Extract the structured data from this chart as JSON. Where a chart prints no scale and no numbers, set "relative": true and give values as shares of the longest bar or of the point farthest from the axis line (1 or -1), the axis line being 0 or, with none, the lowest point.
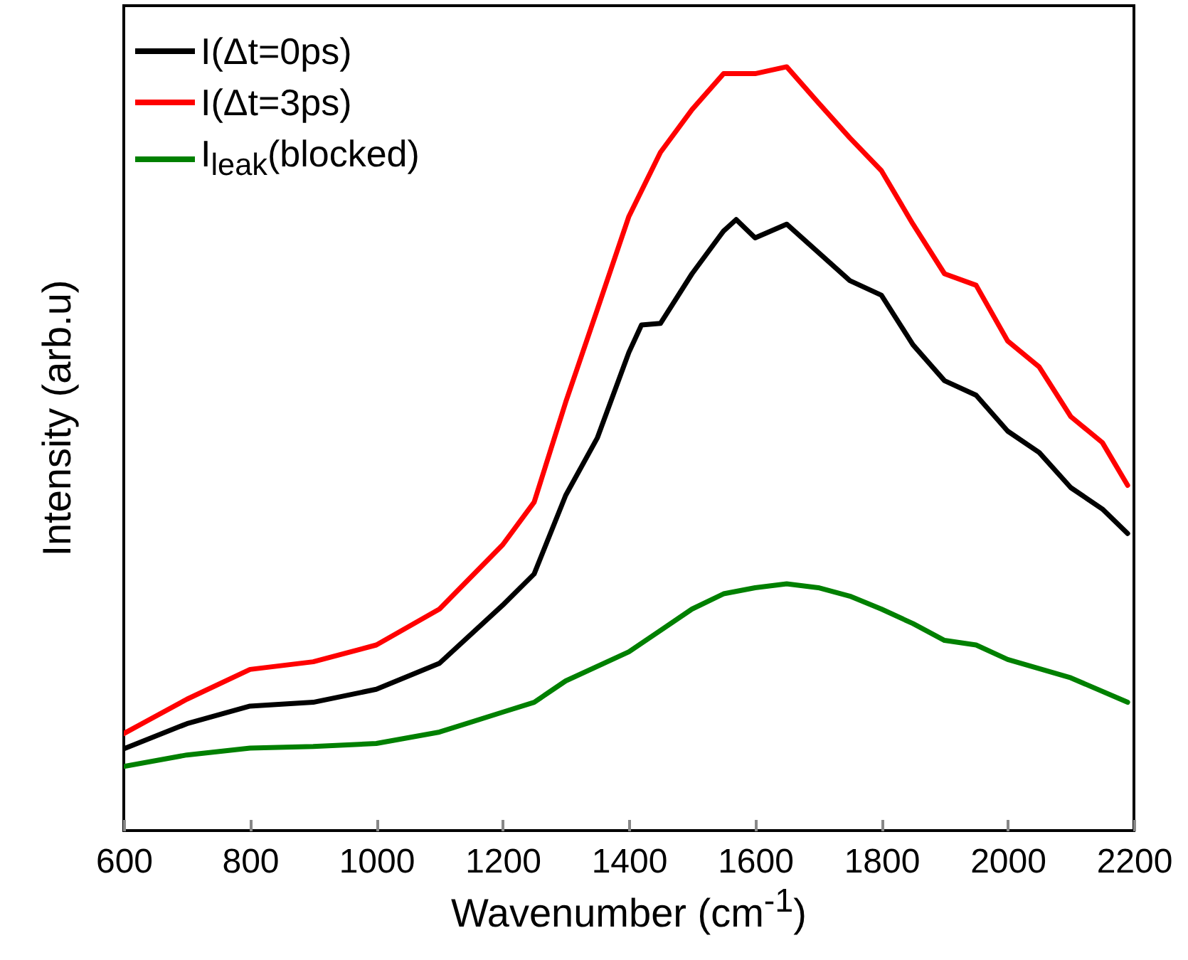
{
  "chart_data": {
    "type": "line",
    "xlabel": "Wavenumber (cm$^{-1}$)",
    "ylabel": "Intensity (arb.u)",
    "relative": true,
    "xlim": [
      600,
      2200
    ],
    "xticks": [
      600,
      800,
      1000,
      1200,
      1400,
      1600,
      1800,
      2000,
      2200
    ],
    "legend": "top left",
    "line_style": "solid",
    "marker": "none",
    "series": [
      {
        "name": "I(Δt=0ps)",
        "color": "#000000",
        "x": [
          600,
          700,
          800,
          900,
          1000,
          1100,
          1200,
          1250,
          1300,
          1350,
          1400,
          1420,
          1450,
          1500,
          1550,
          1570,
          1600,
          1650,
          1700,
          1750,
          1800,
          1850,
          1900,
          1950,
          2000,
          2050,
          2100,
          2150,
          2190
        ],
        "values": [
          0.107,
          0.14,
          0.163,
          0.168,
          0.185,
          0.219,
          0.295,
          0.336,
          0.439,
          0.514,
          0.626,
          0.662,
          0.664,
          0.729,
          0.785,
          0.8,
          0.776,
          0.794,
          0.757,
          0.72,
          0.701,
          0.636,
          0.589,
          0.57,
          0.523,
          0.495,
          0.449,
          0.421,
          0.389
        ]
      },
      {
        "name": "I(Δt=3ps)",
        "color": "#ff0000",
        "x": [
          600,
          700,
          800,
          900,
          1000,
          1100,
          1200,
          1250,
          1300,
          1350,
          1400,
          1450,
          1500,
          1550,
          1600,
          1650,
          1700,
          1750,
          1800,
          1850,
          1900,
          1950,
          2000,
          2050,
          2100,
          2150,
          2190
        ],
        "values": [
          0.127,
          0.172,
          0.211,
          0.221,
          0.243,
          0.29,
          0.374,
          0.43,
          0.561,
          0.682,
          0.804,
          0.888,
          0.944,
          0.991,
          0.991,
          1,
          0.953,
          0.907,
          0.864,
          0.794,
          0.729,
          0.714,
          0.641,
          0.607,
          0.542,
          0.508,
          0.452
        ]
      },
      {
        "name": "I$_{leak}$(blocked)",
        "color": "#008000",
        "x": [
          600,
          700,
          800,
          900,
          1000,
          1100,
          1200,
          1250,
          1300,
          1400,
          1450,
          1500,
          1550,
          1600,
          1650,
          1700,
          1750,
          1800,
          1850,
          1900,
          1950,
          2000,
          2100,
          2190
        ],
        "values": [
          0.084,
          0.099,
          0.108,
          0.11,
          0.114,
          0.129,
          0.155,
          0.168,
          0.196,
          0.234,
          0.262,
          0.29,
          0.31,
          0.318,
          0.323,
          0.318,
          0.307,
          0.29,
          0.271,
          0.249,
          0.243,
          0.224,
          0.2,
          0.168
        ]
      }
    ]
  }
}
